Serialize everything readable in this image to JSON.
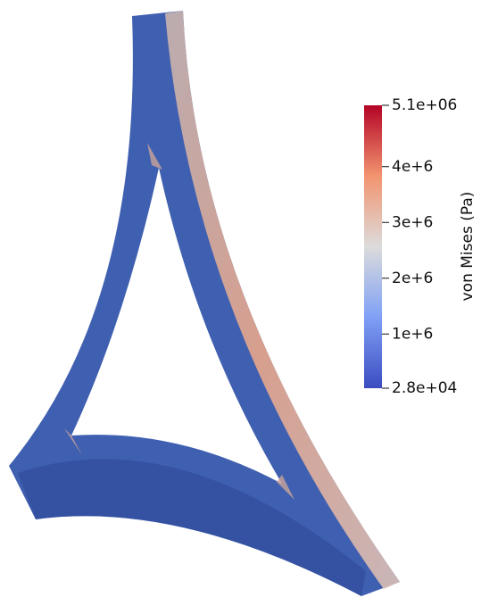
{
  "colorbar": {
    "title": "von Mises (Pa)",
    "range": [
      28000,
      5100000
    ],
    "ticks": [
      {
        "value": 5100000,
        "label": "5.1e+06"
      },
      {
        "value": 4000000,
        "label": "4e+6"
      },
      {
        "value": 3000000,
        "label": "3e+6"
      },
      {
        "value": 2000000,
        "label": "2e+6"
      },
      {
        "value": 1000000,
        "label": "1e+6"
      },
      {
        "value": 28000,
        "label": "2.8e+04"
      }
    ]
  }
}
